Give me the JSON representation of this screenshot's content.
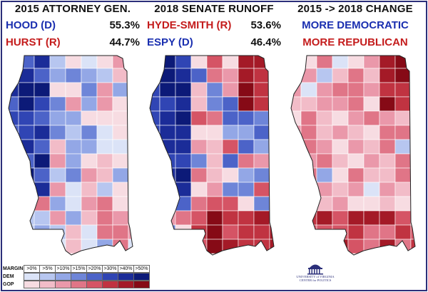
{
  "panels": [
    {
      "title": "2015 ATTORNEY GEN.",
      "candidates": [
        {
          "name": "HOOD (D)",
          "pct": "55.3%",
          "party": "dem"
        },
        {
          "name": "HURST (R)",
          "pct": "44.7%",
          "party": "gop"
        }
      ]
    },
    {
      "title": "2018 SENATE RUNOFF",
      "candidates": [
        {
          "name": "HYDE-SMITH (R)",
          "pct": "53.6%",
          "party": "gop"
        },
        {
          "name": "ESPY (D)",
          "pct": "46.4%",
          "party": "dem"
        }
      ]
    },
    {
      "title": "2015 -> 2018 CHANGE",
      "labels": [
        {
          "text": "MORE DEMOCRATIC",
          "party": "dem"
        },
        {
          "text": "MORE REPUBLICAN",
          "party": "gop"
        }
      ]
    }
  ],
  "legend": {
    "header": "MARGIN",
    "bins": [
      ">0%",
      ">5%",
      ">10%",
      ">15%",
      ">20%",
      ">30%",
      ">40%",
      ">50%"
    ],
    "rows": [
      {
        "label": "DEM",
        "colors": [
          "#dbe3f7",
          "#b7c6f0",
          "#93a7e6",
          "#6e85d8",
          "#4c63c8",
          "#3045b4",
          "#1b2c98",
          "#0c1a78"
        ]
      },
      {
        "label": "GOP",
        "colors": [
          "#f7dce2",
          "#f2bcc8",
          "#ea98aa",
          "#e07587",
          "#d55465",
          "#c03341",
          "#a41a27",
          "#860a16"
        ]
      }
    ]
  },
  "logo": {
    "line1": "UNIVERSITY of VIRGINIA",
    "line2": "CENTER for POLITICS"
  },
  "colors": {
    "border": "#2b2f7a",
    "dem_text": "#1a2fb0",
    "gop_text": "#c41c1c"
  }
}
